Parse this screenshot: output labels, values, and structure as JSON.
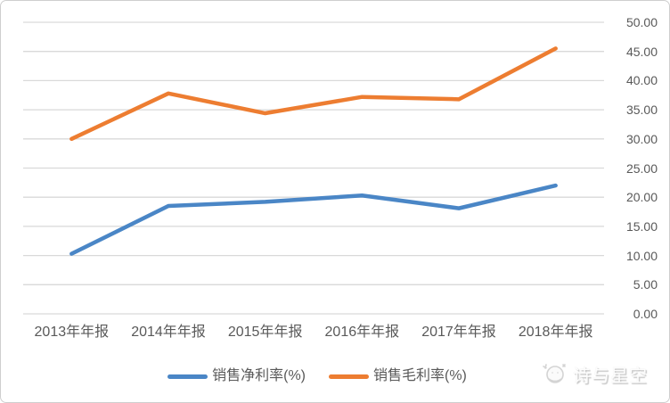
{
  "chart_data": {
    "type": "line",
    "title": "",
    "xlabel": "",
    "ylabel": "",
    "categories": [
      "2013年年报",
      "2014年年报",
      "2015年年报",
      "2016年年报",
      "2017年年报",
      "2018年年报"
    ],
    "series": [
      {
        "name": "销售净利率(%)",
        "color": "#4a86c6",
        "values": [
          10.3,
          18.5,
          19.2,
          20.3,
          18.1,
          22.0
        ]
      },
      {
        "name": "销售毛利率(%)",
        "color": "#ed7d31",
        "values": [
          30.0,
          37.8,
          34.4,
          37.2,
          36.8,
          45.5
        ]
      }
    ],
    "ylim": [
      0,
      50
    ],
    "ytick_step": 5,
    "ytick_labels": [
      "0.00",
      "5.00",
      "10.00",
      "15.00",
      "20.00",
      "25.00",
      "30.00",
      "35.00",
      "40.00",
      "45.00",
      "50.00"
    ],
    "yaxis_side": "right",
    "grid": true,
    "gridline_color": "#d9d9d9",
    "axis_text_color": "#595959",
    "legend_position": "bottom"
  },
  "watermark": {
    "text": "诗与星空",
    "logo": "bird-and-stars-logo"
  }
}
